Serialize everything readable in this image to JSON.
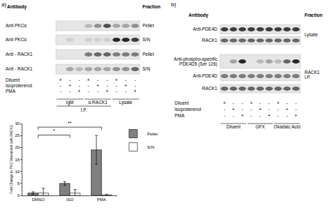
{
  "panel_a": {
    "letter": "a)",
    "header": {
      "antibody": "Antibody",
      "fraction": "Fraction"
    },
    "blots": [
      {
        "antibody": [
          "Anti PKCα"
        ],
        "fraction": "Pellet",
        "bands": [
          0,
          0,
          0,
          0.2,
          0.4,
          0.7,
          0.3,
          0.3,
          0.4
        ]
      },
      {
        "antibody": [
          "Anti PKCα"
        ],
        "fraction": "S/N",
        "bands": [
          0,
          0.1,
          0,
          0.1,
          0.1,
          0.1,
          0.9,
          0.9,
          0.8
        ]
      },
      {
        "antibody": [
          "Anti - RACK1"
        ],
        "fraction": "Pellet",
        "bands": [
          0,
          0,
          0,
          0.5,
          0.6,
          0.6,
          0.5,
          0.5,
          0.5
        ]
      },
      {
        "antibody": [
          "Anti - RACK1"
        ],
        "fraction": "S/N",
        "bands": [
          0,
          0.3,
          0.2,
          0.3,
          0.3,
          0.3,
          0.4,
          0.4,
          0.6
        ]
      }
    ],
    "conditions": [
      {
        "name": "Diluent",
        "signs": [
          "+",
          "-",
          "-",
          "+",
          "-",
          "-",
          "+",
          "-",
          "-"
        ]
      },
      {
        "name": "Isoproterenol",
        "signs": [
          "-",
          "+",
          "-",
          "-",
          "+",
          "-",
          "-",
          "+",
          "-"
        ]
      },
      {
        "name": "PMA",
        "signs": [
          "-",
          "-",
          "+",
          "-",
          "-",
          "+",
          "-",
          "-",
          "+"
        ]
      }
    ],
    "groups": [
      {
        "label": "IgM",
        "lanes": [
          0,
          2
        ]
      },
      {
        "label": "α-RACK1",
        "lanes": [
          3,
          5
        ]
      },
      {
        "label": "Lysate",
        "lanes": [
          6,
          8
        ]
      }
    ],
    "super_group": {
      "label": "I.P.",
      "lanes": [
        0,
        5
      ]
    }
  },
  "chart_data": {
    "type": "bar",
    "categories": [
      "DMSO",
      "ISO",
      "PMA"
    ],
    "series": [
      {
        "name": "Pellet",
        "color": "#808080",
        "values": [
          1,
          5,
          19
        ],
        "error": [
          0.5,
          0.8,
          6
        ]
      },
      {
        "name": "S/N",
        "color": "#ffffff",
        "values": [
          1,
          1,
          0.2
        ],
        "error": [
          2,
          1.5,
          0.3
        ]
      }
    ],
    "ylabel": "Fold Change in PKC Interaction with RACK1",
    "ylim": [
      0,
      30
    ],
    "yticks": [
      0,
      5,
      10,
      15,
      20,
      25,
      30
    ],
    "legend": "top right",
    "significance": [
      {
        "from": "DMSO",
        "to": "ISO",
        "label": "*"
      },
      {
        "from": "DMSO",
        "to": "PMA",
        "label": "**"
      }
    ]
  },
  "panel_b": {
    "letter": "b)",
    "header": {
      "antibody": "Antibody",
      "fraction": "Fraction"
    },
    "blots": [
      {
        "antibody": [
          "Anti-PDE4D"
        ],
        "bands": [
          0.8,
          0.8,
          0.8,
          0.8,
          0.8,
          0.8,
          0.8,
          0.8,
          0.8
        ]
      },
      {
        "antibody": [
          "RACK1"
        ],
        "bands": [
          0.6,
          0.6,
          0.6,
          0.6,
          0.6,
          0.6,
          0.6,
          0.6,
          0.6
        ]
      },
      {
        "antibody": [
          "Anti-phospho-specific",
          "PDE4D5 (Ser 126)"
        ],
        "bands": [
          0,
          0.3,
          0.9,
          0,
          0.2,
          0.3,
          0.2,
          0.6,
          0.9
        ]
      },
      {
        "antibody": [
          "Anti-PDE4D"
        ],
        "bands": [
          0.5,
          0.5,
          0.5,
          0.5,
          0.5,
          0.5,
          0.5,
          0.5,
          0.5
        ]
      },
      {
        "antibody": [
          "RACK1"
        ],
        "bands": [
          0.6,
          0.6,
          0.6,
          0.6,
          0.6,
          0.6,
          0.6,
          0.6,
          0.6
        ]
      }
    ],
    "fractions": [
      {
        "label": [
          "Lysate"
        ],
        "rows": [
          0,
          1
        ]
      },
      {
        "label": [
          "RACK1",
          "I.P."
        ],
        "rows": [
          2,
          4
        ]
      }
    ],
    "conditions": [
      {
        "name": "Diluent",
        "signs": [
          "+",
          "-",
          "-",
          "+",
          "-",
          "-",
          "+",
          "-",
          "-"
        ]
      },
      {
        "name": "Isoproterenol",
        "signs": [
          "-",
          "+",
          "-",
          "-",
          "+",
          "-",
          "-",
          "+",
          "-"
        ]
      },
      {
        "name": "PMA",
        "signs": [
          "-",
          "-",
          "+",
          "-",
          "-",
          "+",
          "-",
          "-",
          "+"
        ]
      }
    ],
    "groups": [
      {
        "label": "Diluent",
        "lanes": [
          0,
          2
        ]
      },
      {
        "label": "GFX",
        "lanes": [
          3,
          5
        ]
      },
      {
        "label": "Okadaic Acid",
        "lanes": [
          6,
          8
        ]
      }
    ]
  }
}
